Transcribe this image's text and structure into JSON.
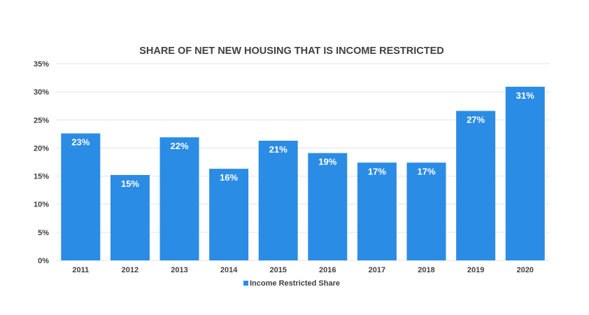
{
  "chart_data": {
    "type": "bar",
    "title": "SHARE OF NET NEW HOUSING THAT IS INCOME RESTRICTED",
    "categories": [
      "2011",
      "2012",
      "2013",
      "2014",
      "2015",
      "2016",
      "2017",
      "2018",
      "2019",
      "2020"
    ],
    "series": [
      {
        "name": "Income Restricted Share",
        "values": [
          22.6,
          15.2,
          21.9,
          16.3,
          21.3,
          19.1,
          17.4,
          17.4,
          26.6,
          30.9
        ],
        "labels": [
          "23%",
          "15%",
          "22%",
          "16%",
          "21%",
          "19%",
          "17%",
          "17%",
          "27%",
          "31%"
        ],
        "color": "#2b8ce6"
      }
    ],
    "ylim": [
      0,
      35
    ],
    "yticks": [
      "0%",
      "5%",
      "10%",
      "15%",
      "20%",
      "25%",
      "30%",
      "35%"
    ],
    "ytick_values": [
      0,
      5,
      10,
      15,
      20,
      25,
      30,
      35
    ],
    "grid": true,
    "legend_position": "bottom",
    "xlabel": "",
    "ylabel": ""
  }
}
